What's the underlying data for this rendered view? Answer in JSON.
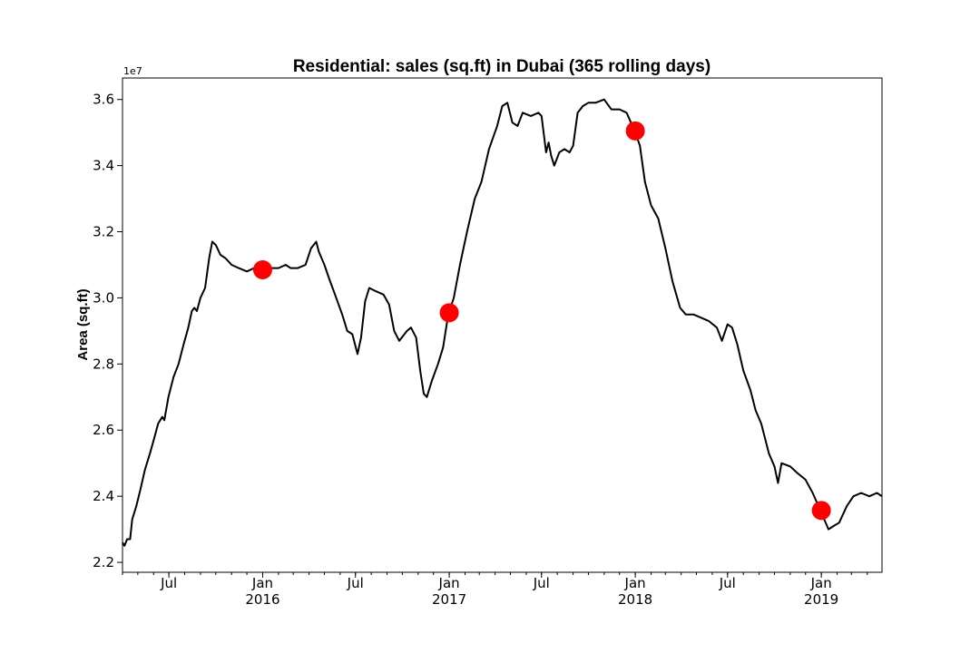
{
  "chart_data": {
    "type": "line",
    "title": "Residential: sales (sq.ft) in Dubai (365 rolling days)",
    "xlabel": "",
    "ylabel": "Area (sq.ft)",
    "y_offset_label": "1e7",
    "y_scale": 10000000,
    "ylim": [
      2.17,
      3.665
    ],
    "xlim": [
      "2015-04-01",
      "2019-04-30"
    ],
    "y_ticks": [
      2.2,
      2.4,
      2.6,
      2.8,
      3.0,
      3.2,
      3.4,
      3.6
    ],
    "y_tick_labels": [
      "2.2",
      "2.4",
      "2.6",
      "2.8",
      "3.0",
      "3.2",
      "3.4",
      "3.6"
    ],
    "x_ticks": [
      {
        "date": "2015-07-01",
        "label": "Jul",
        "year": ""
      },
      {
        "date": "2016-01-01",
        "label": "Jan",
        "year": "2016"
      },
      {
        "date": "2016-07-01",
        "label": "Jul",
        "year": ""
      },
      {
        "date": "2017-01-01",
        "label": "Jan",
        "year": "2017"
      },
      {
        "date": "2017-07-01",
        "label": "Jul",
        "year": ""
      },
      {
        "date": "2018-01-01",
        "label": "Jan",
        "year": "2018"
      },
      {
        "date": "2018-07-01",
        "label": "Jul",
        "year": ""
      },
      {
        "date": "2019-01-01",
        "label": "Jan",
        "year": "2019"
      }
    ],
    "grid": false,
    "line_color": "#000000",
    "marker_color": "#ff0000",
    "series": [
      {
        "values": [
          [
            "2015-04-01",
            2.26
          ],
          [
            "2015-04-05",
            2.25
          ],
          [
            "2015-04-10",
            2.27
          ],
          [
            "2015-04-16",
            2.27
          ],
          [
            "2015-04-20",
            2.33
          ],
          [
            "2015-04-28",
            2.37
          ],
          [
            "2015-05-06",
            2.42
          ],
          [
            "2015-05-15",
            2.48
          ],
          [
            "2015-05-25",
            2.53
          ],
          [
            "2015-06-03",
            2.58
          ],
          [
            "2015-06-10",
            2.62
          ],
          [
            "2015-06-18",
            2.64
          ],
          [
            "2015-06-22",
            2.63
          ],
          [
            "2015-06-30",
            2.7
          ],
          [
            "2015-07-10",
            2.76
          ],
          [
            "2015-07-20",
            2.8
          ],
          [
            "2015-07-30",
            2.86
          ],
          [
            "2015-08-08",
            2.91
          ],
          [
            "2015-08-15",
            2.96
          ],
          [
            "2015-08-20",
            2.97
          ],
          [
            "2015-08-25",
            2.96
          ],
          [
            "2015-09-01",
            3.0
          ],
          [
            "2015-09-10",
            3.03
          ],
          [
            "2015-09-18",
            3.12
          ],
          [
            "2015-09-24",
            3.17
          ],
          [
            "2015-10-01",
            3.16
          ],
          [
            "2015-10-10",
            3.13
          ],
          [
            "2015-10-20",
            3.12
          ],
          [
            "2015-11-01",
            3.1
          ],
          [
            "2015-11-15",
            3.09
          ],
          [
            "2015-12-01",
            3.08
          ],
          [
            "2015-12-15",
            3.09
          ],
          [
            "2016-01-01",
            3.08
          ],
          [
            "2016-01-15",
            3.09
          ],
          [
            "2016-02-01",
            3.09
          ],
          [
            "2016-02-15",
            3.1
          ],
          [
            "2016-02-25",
            3.09
          ],
          [
            "2016-03-10",
            3.09
          ],
          [
            "2016-03-25",
            3.1
          ],
          [
            "2016-04-05",
            3.15
          ],
          [
            "2016-04-15",
            3.17
          ],
          [
            "2016-04-20",
            3.14
          ],
          [
            "2016-05-01",
            3.1
          ],
          [
            "2016-05-10",
            3.06
          ],
          [
            "2016-05-22",
            3.01
          ],
          [
            "2016-06-05",
            2.95
          ],
          [
            "2016-06-15",
            2.9
          ],
          [
            "2016-06-25",
            2.89
          ],
          [
            "2016-07-05",
            2.83
          ],
          [
            "2016-07-12",
            2.88
          ],
          [
            "2016-07-20",
            2.99
          ],
          [
            "2016-07-28",
            3.03
          ],
          [
            "2016-08-10",
            3.02
          ],
          [
            "2016-08-25",
            3.01
          ],
          [
            "2016-09-05",
            2.98
          ],
          [
            "2016-09-15",
            2.9
          ],
          [
            "2016-09-25",
            2.87
          ],
          [
            "2016-10-10",
            2.9
          ],
          [
            "2016-10-18",
            2.91
          ],
          [
            "2016-10-28",
            2.88
          ],
          [
            "2016-11-05",
            2.78
          ],
          [
            "2016-11-12",
            2.71
          ],
          [
            "2016-11-18",
            2.7
          ],
          [
            "2016-11-28",
            2.75
          ],
          [
            "2016-12-10",
            2.8
          ],
          [
            "2016-12-20",
            2.85
          ],
          [
            "2016-12-30",
            2.95
          ],
          [
            "2017-01-10",
            3.0
          ],
          [
            "2017-01-22",
            3.1
          ],
          [
            "2017-02-05",
            3.2
          ],
          [
            "2017-02-20",
            3.3
          ],
          [
            "2017-03-05",
            3.35
          ],
          [
            "2017-03-20",
            3.45
          ],
          [
            "2017-04-05",
            3.52
          ],
          [
            "2017-04-15",
            3.58
          ],
          [
            "2017-04-25",
            3.59
          ],
          [
            "2017-05-05",
            3.53
          ],
          [
            "2017-05-15",
            3.52
          ],
          [
            "2017-05-25",
            3.56
          ],
          [
            "2017-06-10",
            3.55
          ],
          [
            "2017-06-25",
            3.56
          ],
          [
            "2017-07-01",
            3.55
          ],
          [
            "2017-07-10",
            3.44
          ],
          [
            "2017-07-15",
            3.47
          ],
          [
            "2017-07-20",
            3.43
          ],
          [
            "2017-07-26",
            3.4
          ],
          [
            "2017-08-05",
            3.44
          ],
          [
            "2017-08-15",
            3.45
          ],
          [
            "2017-08-25",
            3.44
          ],
          [
            "2017-09-01",
            3.46
          ],
          [
            "2017-09-10",
            3.56
          ],
          [
            "2017-09-20",
            3.58
          ],
          [
            "2017-10-01",
            3.59
          ],
          [
            "2017-10-15",
            3.59
          ],
          [
            "2017-11-01",
            3.6
          ],
          [
            "2017-11-15",
            3.57
          ],
          [
            "2017-12-01",
            3.57
          ],
          [
            "2017-12-15",
            3.56
          ],
          [
            "2018-01-01",
            3.5
          ],
          [
            "2018-01-10",
            3.46
          ],
          [
            "2018-01-20",
            3.35
          ],
          [
            "2018-02-01",
            3.28
          ],
          [
            "2018-02-15",
            3.24
          ],
          [
            "2018-03-01",
            3.15
          ],
          [
            "2018-03-15",
            3.05
          ],
          [
            "2018-03-30",
            2.97
          ],
          [
            "2018-04-10",
            2.95
          ],
          [
            "2018-04-25",
            2.95
          ],
          [
            "2018-05-10",
            2.94
          ],
          [
            "2018-05-25",
            2.93
          ],
          [
            "2018-06-10",
            2.91
          ],
          [
            "2018-06-20",
            2.87
          ],
          [
            "2018-07-01",
            2.92
          ],
          [
            "2018-07-10",
            2.91
          ],
          [
            "2018-07-20",
            2.86
          ],
          [
            "2018-08-01",
            2.78
          ],
          [
            "2018-08-15",
            2.72
          ],
          [
            "2018-08-25",
            2.66
          ],
          [
            "2018-09-05",
            2.62
          ],
          [
            "2018-09-20",
            2.53
          ],
          [
            "2018-10-01",
            2.49
          ],
          [
            "2018-10-08",
            2.44
          ],
          [
            "2018-10-15",
            2.5
          ],
          [
            "2018-11-01",
            2.49
          ],
          [
            "2018-11-15",
            2.47
          ],
          [
            "2018-12-01",
            2.45
          ],
          [
            "2018-12-15",
            2.41
          ],
          [
            "2019-01-01",
            2.35
          ],
          [
            "2019-01-15",
            2.3
          ],
          [
            "2019-01-25",
            2.31
          ],
          [
            "2019-02-05",
            2.32
          ],
          [
            "2019-02-20",
            2.37
          ],
          [
            "2019-03-05",
            2.4
          ],
          [
            "2019-03-20",
            2.41
          ],
          [
            "2019-04-05",
            2.4
          ],
          [
            "2019-04-20",
            2.41
          ],
          [
            "2019-04-30",
            2.4
          ]
        ]
      }
    ],
    "markers": [
      {
        "date": "2016-01-01",
        "value": 3.085
      },
      {
        "date": "2017-01-01",
        "value": 2.955
      },
      {
        "date": "2018-01-01",
        "value": 3.505
      },
      {
        "date": "2019-01-01",
        "value": 2.357
      }
    ]
  }
}
